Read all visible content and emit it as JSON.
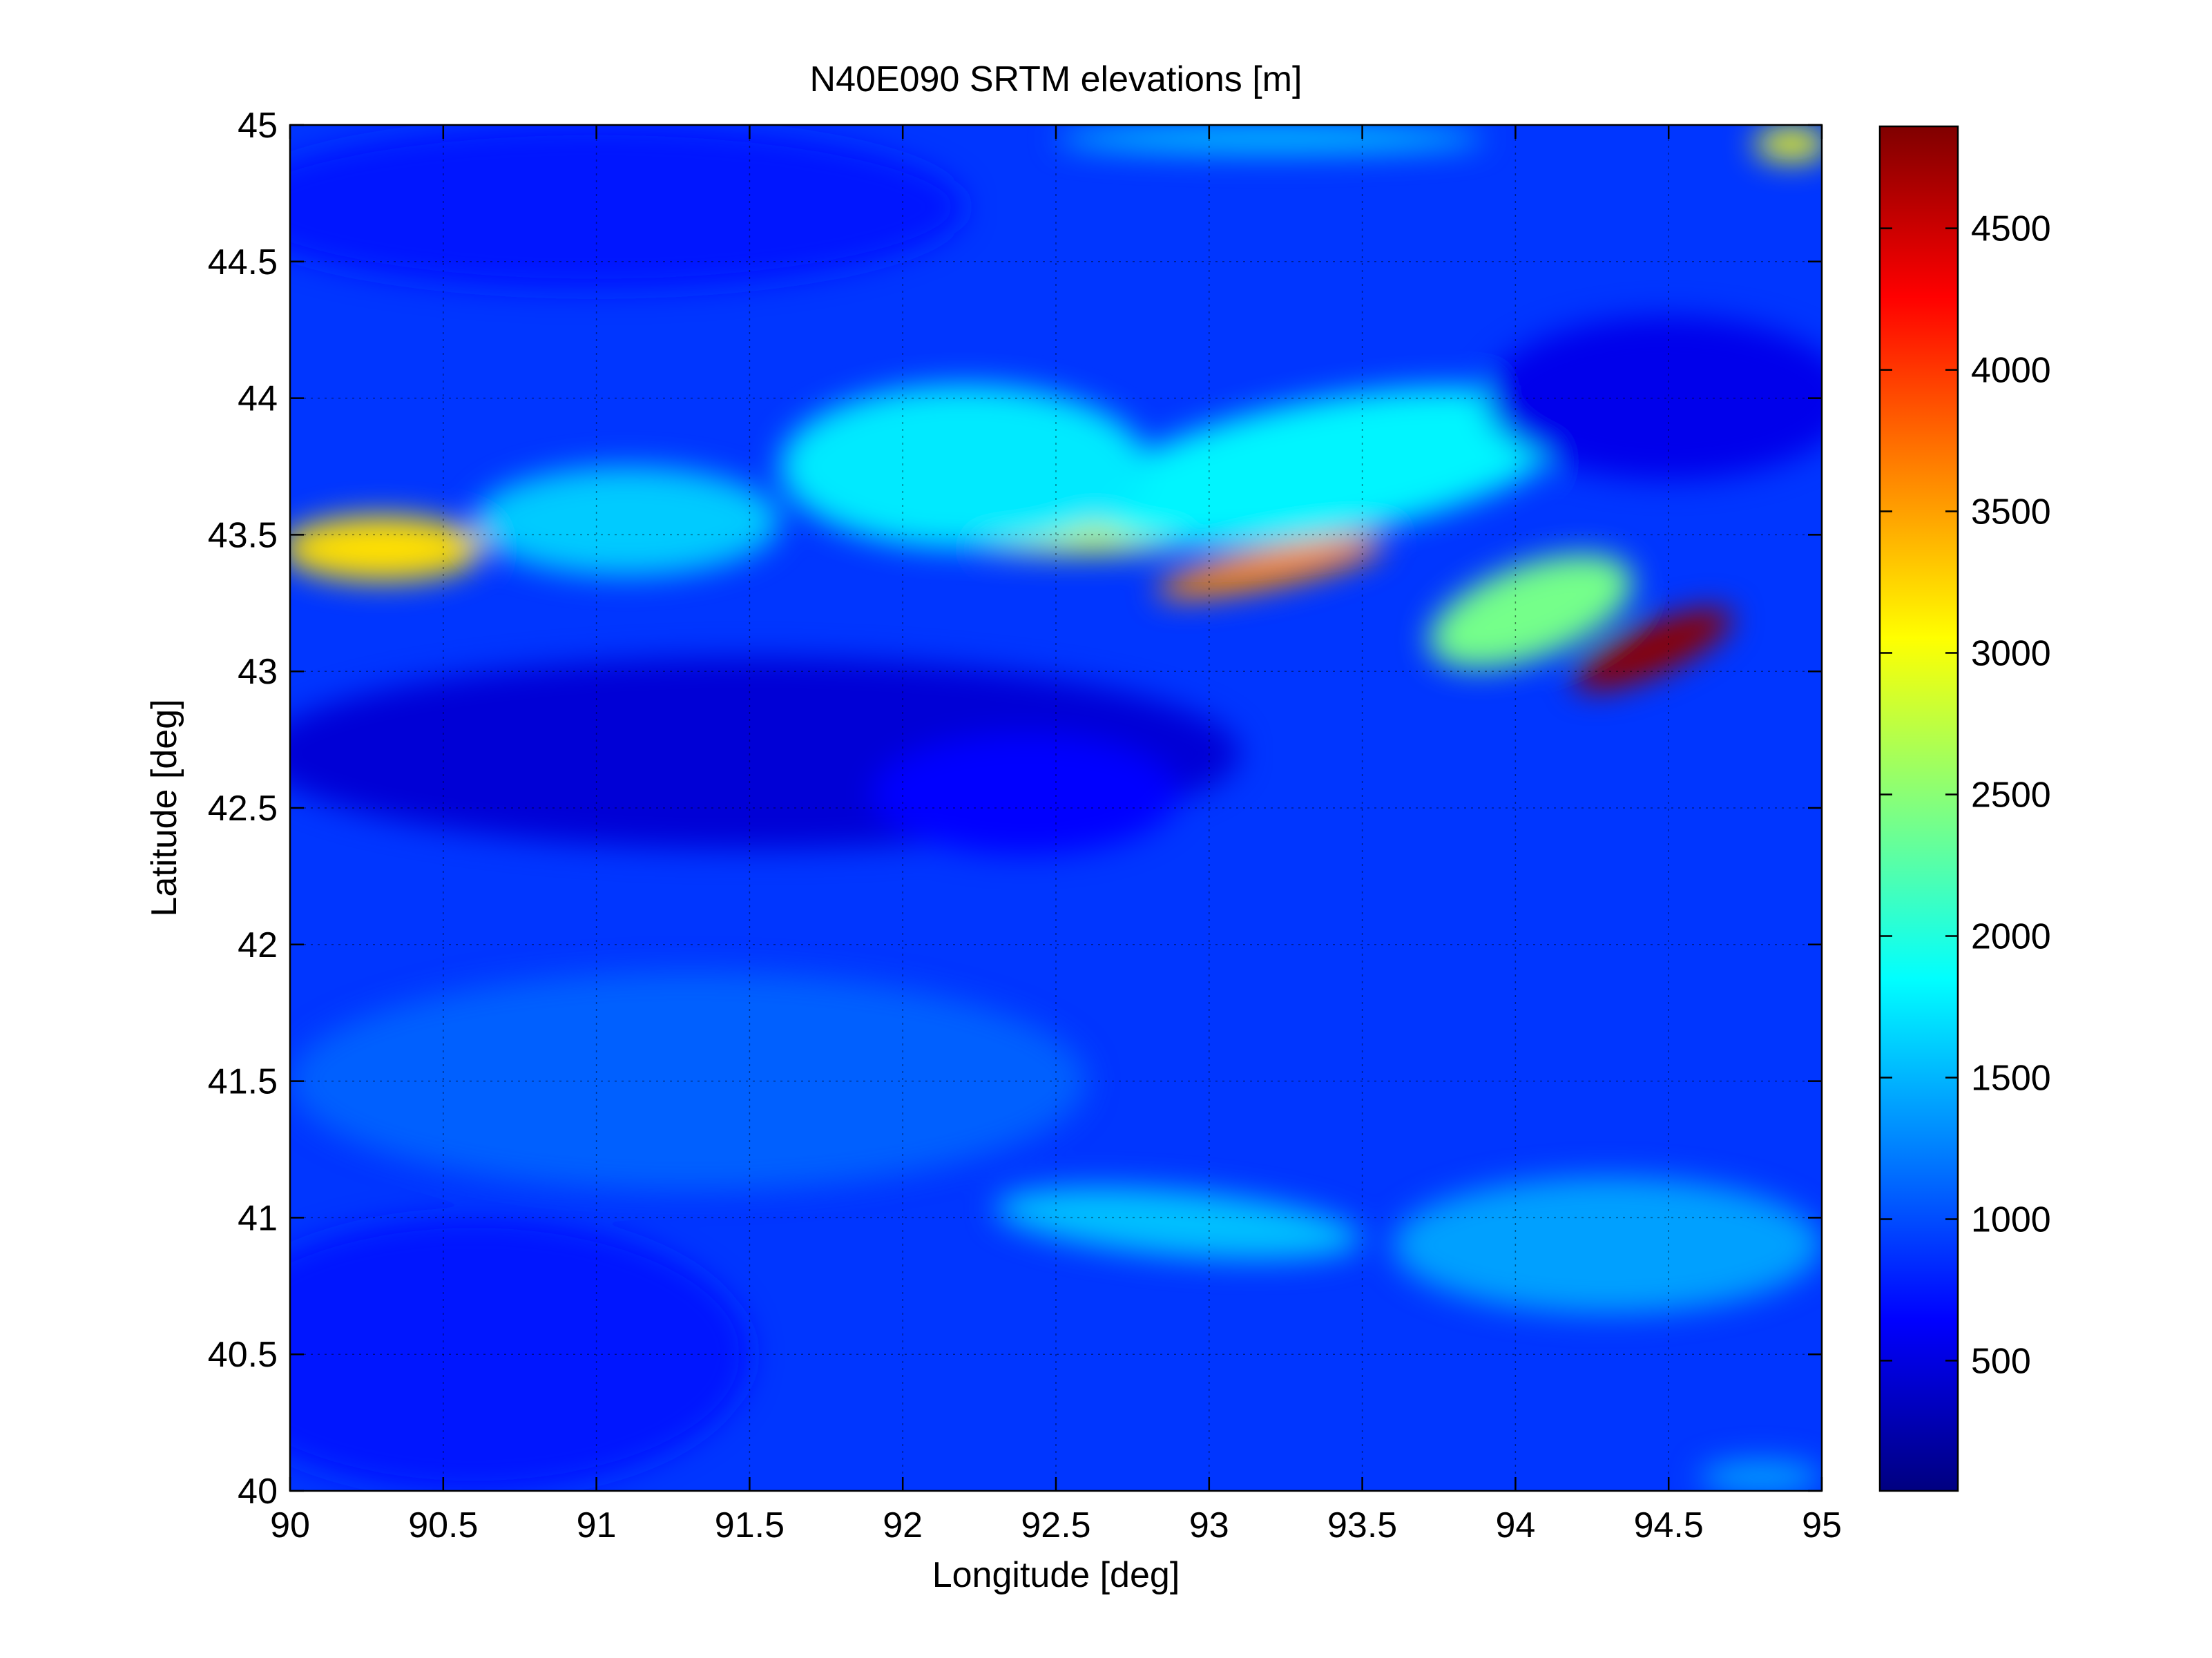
{
  "chart_data": {
    "type": "heatmap",
    "title": "N40E090 SRTM elevations [m]",
    "xlabel": "Longitude [deg]",
    "ylabel": "Latitude [deg]",
    "xlim": [
      90,
      95
    ],
    "ylim": [
      40,
      45
    ],
    "x_ticks": [
      "90",
      "90.5",
      "91",
      "91.5",
      "92",
      "92.5",
      "93",
      "93.5",
      "94",
      "94.5",
      "95"
    ],
    "y_ticks": [
      "40",
      "40.5",
      "41",
      "41.5",
      "42",
      "42.5",
      "43",
      "43.5",
      "44",
      "44.5",
      "45"
    ],
    "grid": true,
    "colormap": "jet",
    "colorbar": {
      "range": [
        40,
        4860
      ],
      "ticks": [
        "500",
        "1000",
        "1500",
        "2000",
        "2500",
        "3000",
        "3500",
        "4000",
        "4500"
      ],
      "placement": "right"
    },
    "background_elevation": 900,
    "features": [
      {
        "lon": 94.45,
        "lat": 43.08,
        "slon": 0.28,
        "slat": 0.09,
        "angle": -24,
        "elev": 3900
      },
      {
        "lon": 94.05,
        "lat": 43.22,
        "slon": 0.35,
        "slat": 0.17,
        "angle": -20,
        "elev": 1500
      },
      {
        "lon": 93.2,
        "lat": 43.38,
        "slon": 0.38,
        "slat": 0.07,
        "angle": -12,
        "elev": 2700
      },
      {
        "lon": 92.55,
        "lat": 43.48,
        "slon": 0.4,
        "slat": 0.05,
        "angle": 0,
        "elev": 1900
      },
      {
        "lon": 93.75,
        "lat": 43.7,
        "slon": 0.33,
        "slat": 0.07,
        "angle": -20,
        "elev": 2500
      },
      {
        "lon": 93.4,
        "lat": 43.75,
        "slon": 0.8,
        "slat": 0.25,
        "angle": -10,
        "elev": 900
      },
      {
        "lon": 92.2,
        "lat": 43.75,
        "slon": 0.6,
        "slat": 0.3,
        "angle": 0,
        "elev": 850
      },
      {
        "lon": 90.3,
        "lat": 43.45,
        "slon": 0.33,
        "slat": 0.12,
        "angle": 0,
        "elev": 2300
      },
      {
        "lon": 91.1,
        "lat": 43.55,
        "slon": 0.5,
        "slat": 0.2,
        "angle": 0,
        "elev": 700
      },
      {
        "lon": 94.9,
        "lat": 44.93,
        "slon": 0.12,
        "slat": 0.06,
        "angle": 0,
        "elev": 2100
      },
      {
        "lon": 93.2,
        "lat": 44.95,
        "slon": 0.7,
        "slat": 0.05,
        "angle": 0,
        "elev": 700
      },
      {
        "lon": 91.5,
        "lat": 42.7,
        "slon": 1.6,
        "slat": 0.35,
        "angle": 0,
        "elev": -450
      },
      {
        "lon": 92.4,
        "lat": 42.55,
        "slon": 0.5,
        "slat": 0.22,
        "angle": 0,
        "elev": -250
      },
      {
        "lon": 94.5,
        "lat": 44.0,
        "slon": 0.6,
        "slat": 0.3,
        "angle": 0,
        "elev": -350
      },
      {
        "lon": 92.9,
        "lat": 40.98,
        "slon": 0.6,
        "slat": 0.12,
        "angle": 5,
        "elev": 650
      },
      {
        "lon": 94.3,
        "lat": 40.9,
        "slon": 0.7,
        "slat": 0.25,
        "angle": 0,
        "elev": 500
      },
      {
        "lon": 94.8,
        "lat": 40.05,
        "slon": 0.2,
        "slat": 0.06,
        "angle": 0,
        "elev": 500
      },
      {
        "lon": 91.3,
        "lat": 41.5,
        "slon": 1.3,
        "slat": 0.4,
        "angle": 0,
        "elev": 200
      },
      {
        "lon": 90.6,
        "lat": 40.5,
        "slon": 0.9,
        "slat": 0.5,
        "angle": 0,
        "elev": -150
      },
      {
        "lon": 91.0,
        "lat": 44.7,
        "slon": 1.2,
        "slat": 0.3,
        "angle": 0,
        "elev": -150
      }
    ]
  }
}
